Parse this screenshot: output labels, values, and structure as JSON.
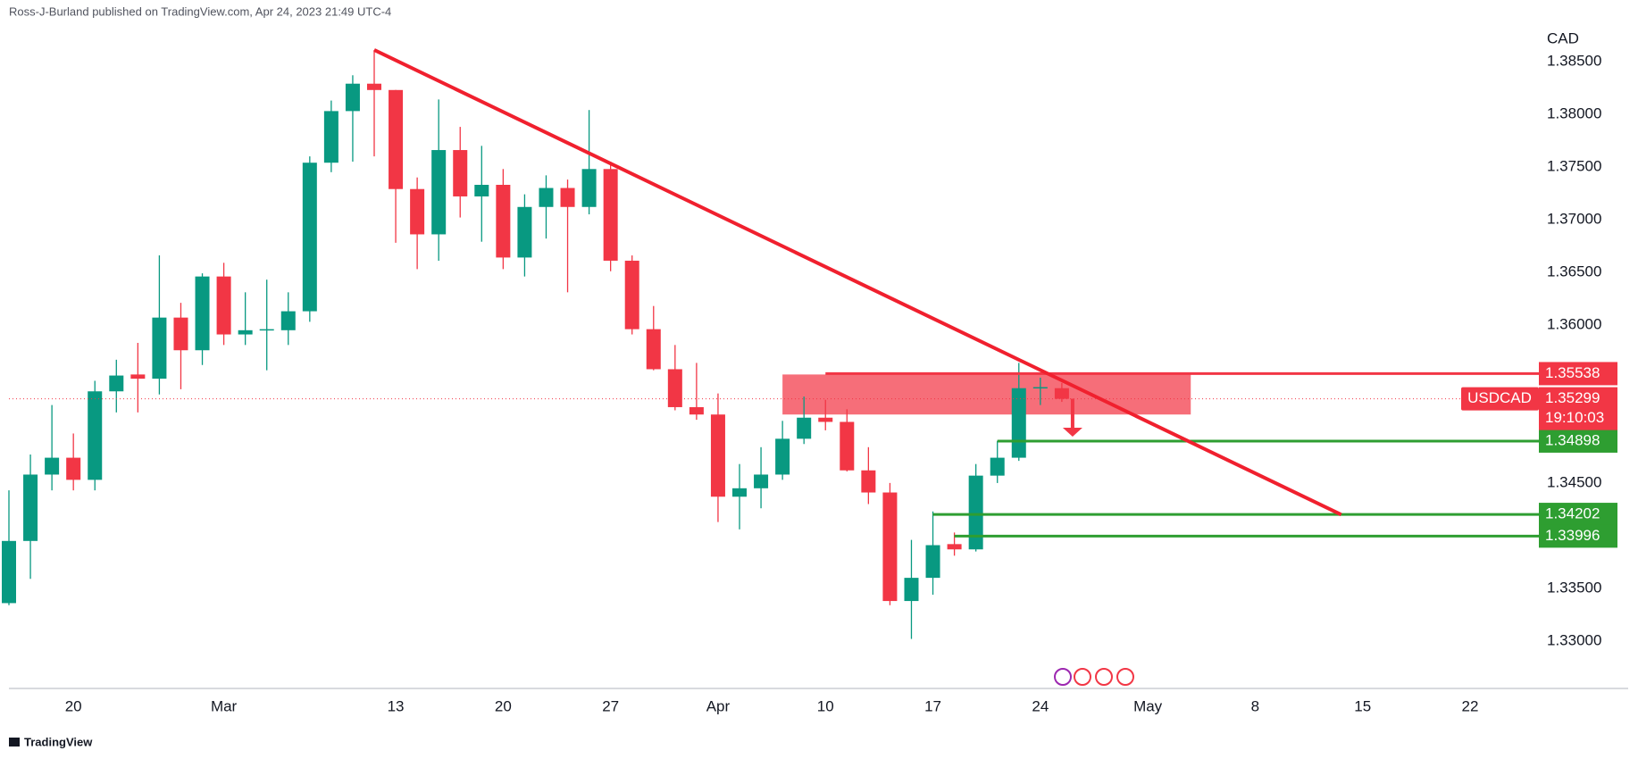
{
  "chart_data": {
    "type": "candlestick",
    "header": "Ross-J-Burland published on TradingView.com, Apr 24, 2023 21:49 UTC-4",
    "currency": "CAD",
    "footer": "TradingView",
    "countdown": "19:10:03",
    "xlim": [
      0,
      71.2
    ],
    "ylim": [
      1.3255,
      1.3883
    ],
    "xticks": [
      {
        "value": 3,
        "label": "20"
      },
      {
        "value": 10,
        "label": "Mar"
      },
      {
        "value": 18,
        "label": "13"
      },
      {
        "value": 23,
        "label": "20"
      },
      {
        "value": 28,
        "label": "27"
      },
      {
        "value": 33,
        "label": "Apr"
      },
      {
        "value": 38,
        "label": "10"
      },
      {
        "value": 43,
        "label": "17"
      },
      {
        "value": 48,
        "label": "24"
      },
      {
        "value": 53,
        "label": "May"
      },
      {
        "value": 58,
        "label": "8"
      },
      {
        "value": 63,
        "label": "15"
      },
      {
        "value": 68,
        "label": "22"
      }
    ],
    "yticks": [
      {
        "value": 1.33,
        "label": "1.33000"
      },
      {
        "value": 1.335,
        "label": "1.33500"
      },
      {
        "value": 1.34,
        "label": "1.34000"
      },
      {
        "value": 1.345,
        "label": "1.34500"
      },
      {
        "value": 1.35,
        "label": "1.35000"
      },
      {
        "value": 1.355,
        "label": "1.35500"
      },
      {
        "value": 1.36,
        "label": "1.36000"
      },
      {
        "value": 1.365,
        "label": "1.36500"
      },
      {
        "value": 1.37,
        "label": "1.37000"
      },
      {
        "value": 1.375,
        "label": "1.37500"
      },
      {
        "value": 1.38,
        "label": "1.38000"
      },
      {
        "value": 1.385,
        "label": "1.38500"
      }
    ],
    "series": [
      {
        "name": "USDCAD",
        "up_color": "#089981",
        "down_color": "#f23645",
        "open": [
          1.3336,
          1.3395,
          1.3458,
          1.3474,
          1.3453,
          1.3537,
          1.3553,
          1.3549,
          1.3607,
          1.3576,
          1.3646,
          1.3591,
          1.3595,
          1.3595,
          1.3613,
          1.3754,
          1.3803,
          1.3829,
          1.3823,
          1.3729,
          1.3686,
          1.3766,
          1.3722,
          1.3733,
          1.3664,
          1.3712,
          1.373,
          1.3712,
          1.3748,
          1.3661,
          1.3596,
          1.3558,
          1.3522,
          1.3515,
          1.3437,
          1.3445,
          1.3458,
          1.3492,
          1.3512,
          1.3508,
          1.3462,
          1.3441,
          1.3338,
          1.336,
          1.3392,
          1.3387,
          1.3457,
          1.3474,
          1.354,
          1.354
        ],
        "high": [
          1.3443,
          1.3477,
          1.3524,
          1.3497,
          1.3547,
          1.3567,
          1.3583,
          1.3666,
          1.3621,
          1.3649,
          1.3659,
          1.3631,
          1.3643,
          1.3631,
          1.376,
          1.3813,
          1.3837,
          1.3861,
          1.3823,
          1.374,
          1.3814,
          1.3788,
          1.377,
          1.3748,
          1.3724,
          1.3742,
          1.3738,
          1.3804,
          1.3755,
          1.3666,
          1.3618,
          1.3581,
          1.3564,
          1.3535,
          1.3468,
          1.3484,
          1.3509,
          1.3532,
          1.3529,
          1.352,
          1.3484,
          1.345,
          1.3396,
          1.3423,
          1.3403,
          1.3468,
          1.349,
          1.3564,
          1.355,
          1.3545
        ],
        "low": [
          1.3334,
          1.3359,
          1.3443,
          1.3443,
          1.3443,
          1.3517,
          1.3517,
          1.3534,
          1.3539,
          1.3562,
          1.3581,
          1.3581,
          1.3557,
          1.3581,
          1.3603,
          1.3745,
          1.3755,
          1.376,
          1.3678,
          1.3653,
          1.3661,
          1.3702,
          1.3679,
          1.3653,
          1.3646,
          1.3682,
          1.3631,
          1.3705,
          1.3651,
          1.3591,
          1.3557,
          1.3519,
          1.351,
          1.3413,
          1.3406,
          1.3426,
          1.3453,
          1.3487,
          1.35,
          1.3461,
          1.343,
          1.3334,
          1.3302,
          1.3344,
          1.3381,
          1.3385,
          1.345,
          1.3471,
          1.3524,
          1.3527
        ],
        "close": [
          1.3395,
          1.3458,
          1.3474,
          1.3453,
          1.3537,
          1.3552,
          1.3549,
          1.3607,
          1.3576,
          1.3646,
          1.3591,
          1.3595,
          1.3596,
          1.3613,
          1.3754,
          1.3803,
          1.3829,
          1.3823,
          1.3729,
          1.3686,
          1.3766,
          1.3722,
          1.3733,
          1.3664,
          1.3712,
          1.373,
          1.3712,
          1.3748,
          1.3661,
          1.3596,
          1.3558,
          1.3522,
          1.3515,
          1.3437,
          1.3445,
          1.3458,
          1.3492,
          1.3512,
          1.3508,
          1.3462,
          1.3441,
          1.3338,
          1.336,
          1.3391,
          1.3387,
          1.3457,
          1.3474,
          1.354,
          1.3541,
          1.35299
        ]
      }
    ],
    "zone": {
      "x": [
        36,
        55
      ],
      "y": [
        1.3515,
        1.3553
      ],
      "color": "#f23645"
    },
    "trendline": {
      "x": [
        17,
        62
      ],
      "y": [
        1.3861,
        1.342
      ],
      "color": "#f0202e"
    },
    "arrow": {
      "x": 49.5,
      "y": [
        1.353,
        1.3494
      ],
      "color": "#f23645"
    },
    "levels": [
      {
        "value": 1.35538,
        "start": 38,
        "color": "#f23645"
      },
      {
        "value": 1.34898,
        "start": 46,
        "color": "#2e9e31"
      },
      {
        "value": 1.34202,
        "start": 43,
        "color": "#2e9e31"
      },
      {
        "value": 1.33996,
        "start": 44,
        "color": "#2e9e31"
      }
    ]
  }
}
